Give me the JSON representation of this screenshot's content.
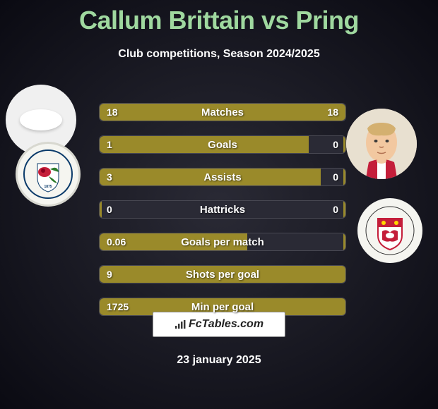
{
  "title": "Callum Brittain vs Pring",
  "subtitle": "Club competitions, Season 2024/2025",
  "footer_label": "FcTables.com",
  "date": "23 january 2025",
  "colors": {
    "bar_fill": "#9a8a2a",
    "title": "#9fd89f",
    "bg_inner": "#2a2a35",
    "bg_outer": "#0a0a12"
  },
  "rows": [
    {
      "label": "Matches",
      "left": "18",
      "right": "18",
      "left_pct": 50,
      "right_pct": 50
    },
    {
      "label": "Goals",
      "left": "1",
      "right": "0",
      "left_pct": 85,
      "right_pct": 1
    },
    {
      "label": "Assists",
      "left": "3",
      "right": "0",
      "left_pct": 90,
      "right_pct": 1
    },
    {
      "label": "Hattricks",
      "left": "0",
      "right": "0",
      "left_pct": 1,
      "right_pct": 1
    },
    {
      "label": "Goals per match",
      "left": "0.06",
      "right": "",
      "left_pct": 60,
      "right_pct": 1
    },
    {
      "label": "Shots per goal",
      "left": "9",
      "right": "",
      "left_pct": 100,
      "right_pct": 0
    },
    {
      "label": "Min per goal",
      "left": "1725",
      "right": "",
      "left_pct": 100,
      "right_pct": 0
    }
  ]
}
